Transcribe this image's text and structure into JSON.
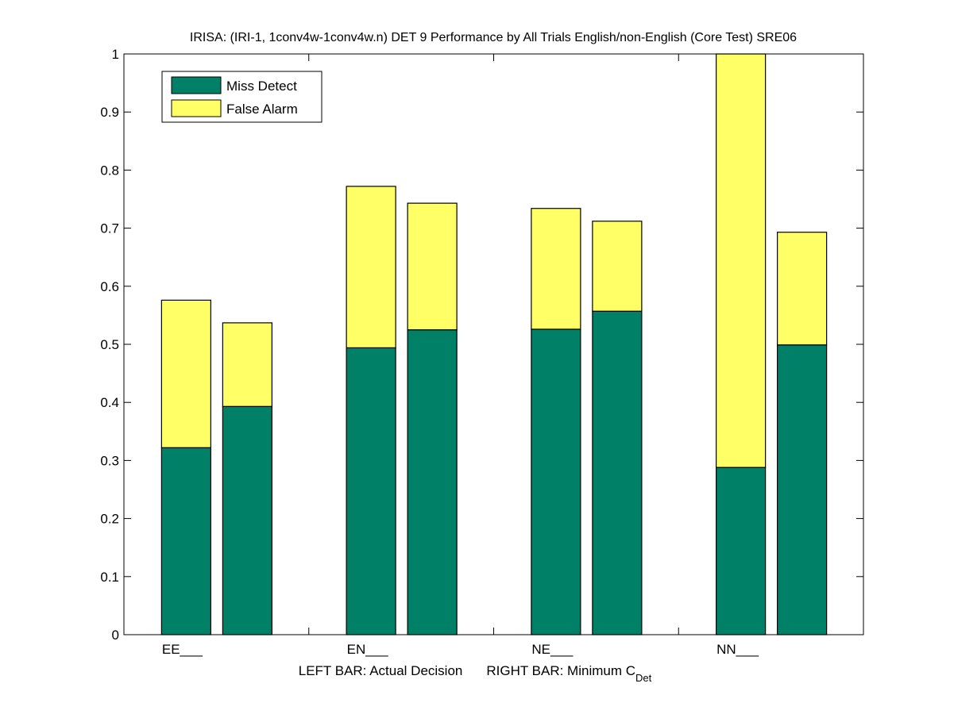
{
  "chart_data": {
    "type": "bar",
    "stacked": true,
    "title": "IRISA: (IRI-1, 1conv4w-1conv4w.n) DET 9 Performance by All Trials English/non-English (Core Test) SRE06",
    "xlabel_parts": {
      "left": "LEFT BAR: Actual Decision",
      "right_main": "RIGHT BAR: Minimum C",
      "right_sub": "Det"
    },
    "ylabel": "",
    "ylim": [
      0,
      1
    ],
    "yticks": [
      0,
      0.1,
      0.2,
      0.3,
      0.4,
      0.5,
      0.6,
      0.7,
      0.8,
      0.9,
      1
    ],
    "ytick_labels": [
      "0",
      "0.1",
      "0.2",
      "0.3",
      "0.4",
      "0.5",
      "0.6",
      "0.7",
      "0.8",
      "0.9",
      "1"
    ],
    "categories": [
      "EE___",
      "EN___",
      "NE___",
      "NN___"
    ],
    "bars_per_category": [
      "Actual Decision",
      "Minimum CDet"
    ],
    "series": [
      {
        "name": "Miss Detect",
        "color": "#008066",
        "values": [
          [
            0.322,
            0.393
          ],
          [
            0.494,
            0.525
          ],
          [
            0.526,
            0.557
          ],
          [
            0.288,
            0.499
          ]
        ]
      },
      {
        "name": "False Alarm",
        "color": "#FFFF66",
        "values": [
          [
            0.254,
            0.144
          ],
          [
            0.278,
            0.218
          ],
          [
            0.208,
            0.155
          ],
          [
            0.712,
            0.194
          ]
        ]
      }
    ],
    "legend": {
      "placement": "top-left",
      "entries": [
        "Miss Detect",
        "False Alarm"
      ]
    },
    "grid": false
  }
}
